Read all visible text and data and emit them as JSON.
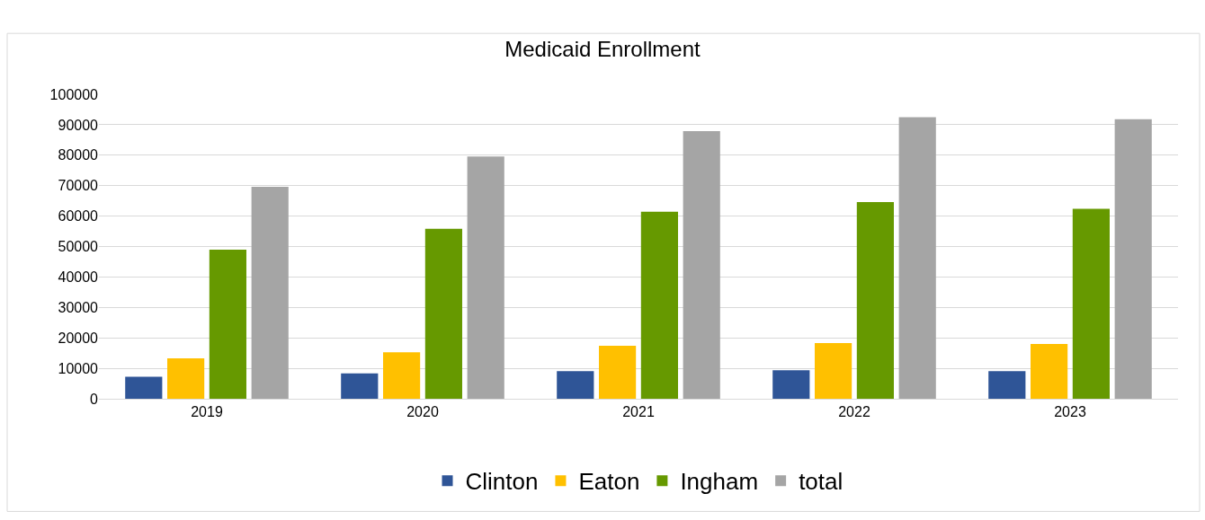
{
  "chart_data": {
    "type": "bar",
    "title": "Medicaid Enrollment",
    "categories": [
      "2019",
      "2020",
      "2021",
      "2022",
      "2023"
    ],
    "series": [
      {
        "name": "Clinton",
        "color": "#2f5597",
        "values": [
          7200,
          8300,
          9100,
          9400,
          9100
        ]
      },
      {
        "name": "Eaton",
        "color": "#ffc000",
        "values": [
          13300,
          15300,
          17400,
          18300,
          18000
        ]
      },
      {
        "name": "Ingham",
        "color": "#669900",
        "values": [
          49000,
          55800,
          61400,
          64600,
          62400
        ]
      },
      {
        "name": "total",
        "color": "#a5a5a5",
        "values": [
          69600,
          79600,
          87900,
          92500,
          91800
        ]
      }
    ],
    "ylim": [
      0,
      100000
    ],
    "yticks": [
      0,
      10000,
      20000,
      30000,
      40000,
      50000,
      60000,
      70000,
      80000,
      90000,
      100000
    ],
    "grid": "y",
    "legend": "bottom"
  }
}
